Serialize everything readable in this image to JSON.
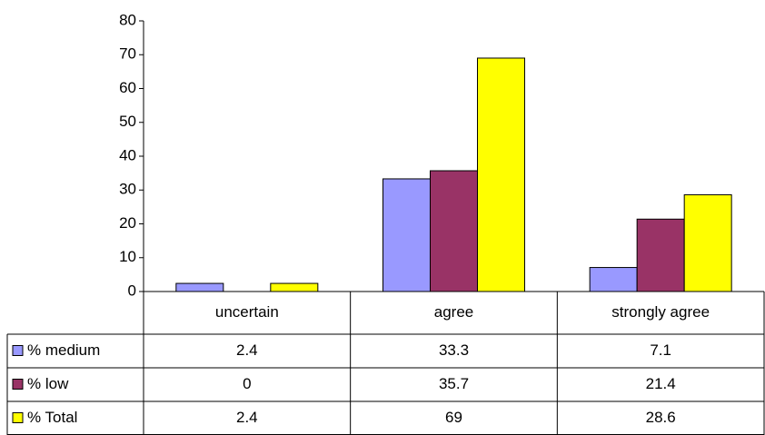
{
  "chart_data": {
    "type": "bar",
    "categories": [
      "uncertain",
      "agree",
      "strongly agree"
    ],
    "series": [
      {
        "name": "% medium",
        "color": "#9999ff",
        "values": [
          2.4,
          33.3,
          7.1
        ]
      },
      {
        "name": "% low",
        "color": "#993366",
        "values": [
          0,
          35.7,
          21.4
        ]
      },
      {
        "name": "% Total",
        "color": "#ffff00",
        "values": [
          2.4,
          69,
          28.6
        ]
      }
    ],
    "ylim": [
      0,
      80
    ],
    "yticks": [
      0,
      10,
      20,
      30,
      40,
      50,
      60,
      70,
      80
    ],
    "grid": false,
    "data_table": true
  }
}
